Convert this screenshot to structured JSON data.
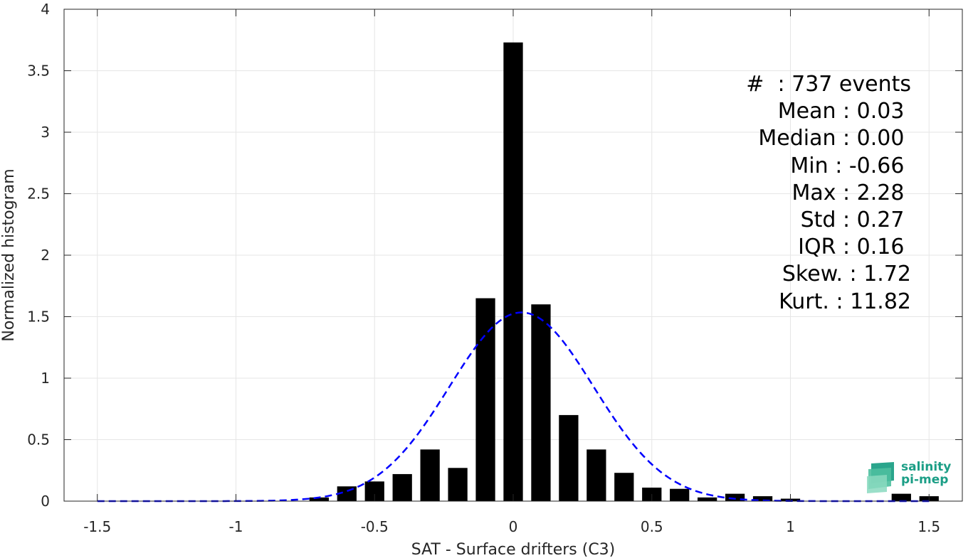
{
  "chart_data": {
    "type": "bar",
    "xlabel": "SAT - Surface drifters (C3)",
    "ylabel": "Normalized histogram",
    "xlim": [
      -1.62,
      1.62
    ],
    "ylim": [
      0,
      4
    ],
    "xticks": [
      "-1.5",
      "-1",
      "-0.5",
      "0",
      "0.5",
      "1",
      "1.5"
    ],
    "xtick_values": [
      -1.5,
      -1,
      -0.5,
      0,
      0.5,
      1,
      1.5
    ],
    "yticks": [
      "0",
      "0.5",
      "1",
      "1.5",
      "2",
      "2.5",
      "3",
      "3.5",
      "4"
    ],
    "ytick_values": [
      0,
      0.5,
      1,
      1.5,
      2,
      2.5,
      3,
      3.5,
      4
    ],
    "grid": true,
    "bar_color": "#000000",
    "bars": {
      "x": [
        -0.7,
        -0.6,
        -0.5,
        -0.4,
        -0.3,
        -0.2,
        -0.1,
        0.0,
        0.1,
        0.2,
        0.3,
        0.4,
        0.5,
        0.6,
        0.7,
        0.8,
        0.9,
        1.0,
        1.4,
        1.5
      ],
      "values": [
        0.03,
        0.12,
        0.16,
        0.22,
        0.42,
        0.27,
        1.65,
        3.73,
        1.6,
        0.7,
        0.42,
        0.23,
        0.11,
        0.1,
        0.03,
        0.06,
        0.04,
        0.02,
        0.06,
        0.04
      ]
    },
    "fit_curve": {
      "style": "dashed",
      "color": "#0000ff",
      "mean": 0.03,
      "std": 0.26
    }
  },
  "stats": [
    "#  : 737 events",
    "Mean : 0.03 ",
    "Median : 0.00 ",
    "Min : -0.66 ",
    "Max : 2.28 ",
    "Std : 0.27 ",
    "IQR : 0.16 ",
    "Skew. : 1.72",
    "Kurt. : 11.82"
  ],
  "logo": {
    "line1": "salinity",
    "line2": "pi-mep",
    "icon": "salinity-logo-icon",
    "color": "#1b9e86"
  }
}
